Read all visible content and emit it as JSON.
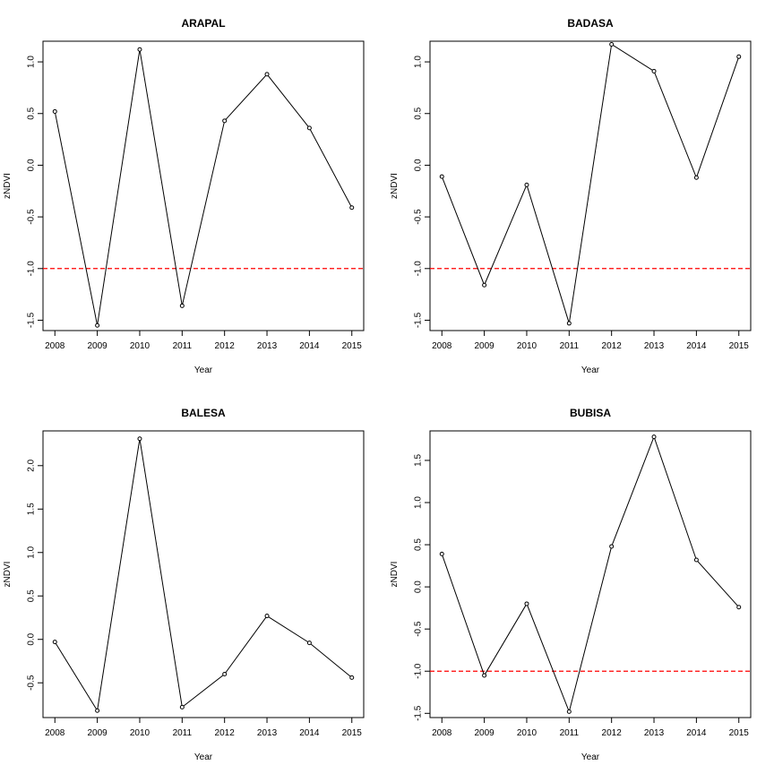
{
  "chart_data": [
    {
      "type": "line",
      "title": "ARAPAL",
      "xlabel": "Year",
      "ylabel": "zNDVI",
      "x": [
        2008,
        2009,
        2010,
        2011,
        2012,
        2013,
        2014,
        2015
      ],
      "series": [
        {
          "values": [
            0.52,
            -1.55,
            1.12,
            -1.36,
            0.43,
            0.88,
            0.36,
            -0.41
          ]
        }
      ],
      "reference_line": {
        "y": -1.0,
        "color": "#ff0000",
        "style": "dashed"
      },
      "xlim": [
        2008,
        2015
      ],
      "ylim": [
        -1.6,
        1.2
      ],
      "yticks": [
        "-1.5",
        "-1.0",
        "-0.5",
        "0.0",
        "0.5",
        "1.0"
      ],
      "grid": false
    },
    {
      "type": "line",
      "title": "BADASA",
      "xlabel": "Year",
      "ylabel": "zNDVI",
      "x": [
        2008,
        2009,
        2010,
        2011,
        2012,
        2013,
        2014,
        2015
      ],
      "series": [
        {
          "values": [
            -0.11,
            -1.16,
            -0.19,
            -1.53,
            1.17,
            0.91,
            -0.12,
            1.05
          ]
        }
      ],
      "reference_line": {
        "y": -1.0,
        "color": "#ff0000",
        "style": "dashed"
      },
      "xlim": [
        2008,
        2015
      ],
      "ylim": [
        -1.6,
        1.2
      ],
      "yticks": [
        "-1.5",
        "-1.0",
        "-0.5",
        "0.0",
        "0.5",
        "1.0"
      ],
      "grid": false
    },
    {
      "type": "line",
      "title": "BALESA",
      "xlabel": "Year",
      "ylabel": "zNDVI",
      "x": [
        2008,
        2009,
        2010,
        2011,
        2012,
        2013,
        2014,
        2015
      ],
      "series": [
        {
          "values": [
            -0.03,
            -0.82,
            2.31,
            -0.78,
            -0.4,
            0.27,
            -0.04,
            -0.44
          ]
        }
      ],
      "xlim": [
        2008,
        2015
      ],
      "ylim": [
        -0.9,
        2.4
      ],
      "yticks": [
        "-0.5",
        "0.0",
        "0.5",
        "1.0",
        "1.5",
        "2.0"
      ],
      "grid": false
    },
    {
      "type": "line",
      "title": "BUBISA",
      "xlabel": "Year",
      "ylabel": "zNDVI",
      "x": [
        2008,
        2009,
        2010,
        2011,
        2012,
        2013,
        2014,
        2015
      ],
      "series": [
        {
          "values": [
            0.39,
            -1.05,
            -0.2,
            -1.48,
            0.48,
            1.78,
            0.32,
            -0.24
          ]
        }
      ],
      "reference_line": {
        "y": -1.0,
        "color": "#ff0000",
        "style": "dashed"
      },
      "xlim": [
        2008,
        2015
      ],
      "ylim": [
        -1.55,
        1.85
      ],
      "yticks": [
        "-1.5",
        "-1.0",
        "-0.5",
        "0.0",
        "0.5",
        "1.0",
        "1.5"
      ],
      "grid": false
    }
  ]
}
